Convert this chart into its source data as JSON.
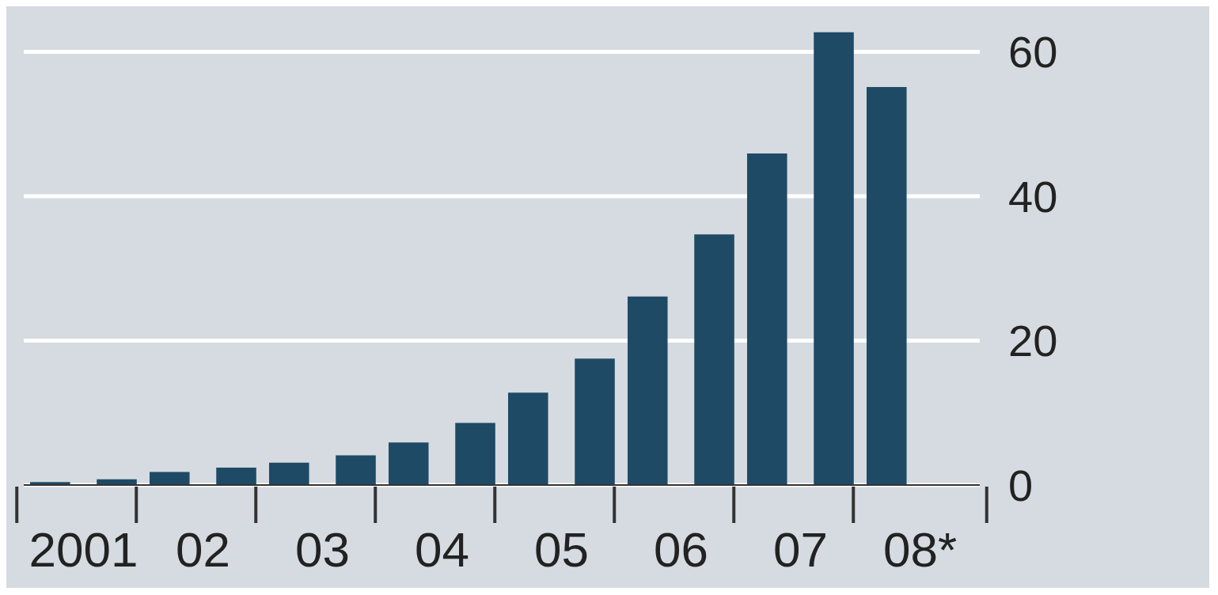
{
  "chart_data": {
    "type": "bar",
    "categories": [
      "2001",
      "02",
      "03",
      "04",
      "05",
      "06",
      "07",
      "08*"
    ],
    "series": [
      {
        "color": "#1f4a66",
        "values": [
          0.4,
          1.8,
          3.1,
          5.9,
          12.8,
          26.1,
          45.9,
          55.1
        ]
      },
      {
        "color": "#1f4a66",
        "values": [
          0.8,
          2.4,
          4.1,
          8.6,
          17.5,
          34.7,
          62.7,
          null
        ]
      }
    ],
    "ylim": [
      0,
      63
    ],
    "yticks": [
      0,
      20,
      40,
      60
    ],
    "grid": "y"
  }
}
